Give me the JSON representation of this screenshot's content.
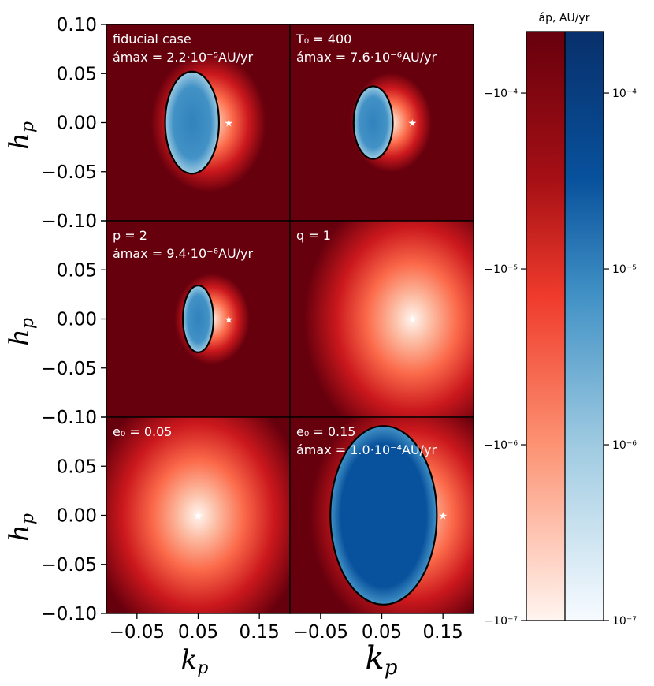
{
  "chart_data": {
    "type": "heatmap",
    "layout": "3 rows x 2 columns of panels with shared axes",
    "x": {
      "label_main": "k",
      "label_sub": "p",
      "range": [
        -0.1,
        0.2
      ],
      "ticks": [
        "−0.05",
        "0.05",
        "0.15"
      ]
    },
    "y": {
      "label_main": "h",
      "label_sub": "p",
      "range": [
        -0.1,
        0.1
      ],
      "ticks": [
        "0.10",
        "0.05",
        "0.00",
        "−0.05",
        "−0.10"
      ]
    },
    "panels": [
      {
        "id": "fiducial",
        "line1": "fiducial case",
        "line2": "ámax = 2.2·10⁻⁵AU/yr",
        "amax": 2.2e-05,
        "star": [
          0.1,
          0.0
        ],
        "ellipse": {
          "cx": 0.04,
          "cy": 0.0,
          "rx": 0.044,
          "ry": 0.052
        }
      },
      {
        "id": "T0",
        "line1": "T₀ = 400",
        "line2": "ámax = 7.6·10⁻⁶AU/yr",
        "amax": 7.6e-06,
        "star": [
          0.1,
          0.0
        ],
        "ellipse": {
          "cx": 0.036,
          "cy": 0.0,
          "rx": 0.032,
          "ry": 0.037
        }
      },
      {
        "id": "p2",
        "line1": "p = 2",
        "line2": "ámax = 9.4·10⁻⁶AU/yr",
        "amax": 9.4e-06,
        "star": [
          0.1,
          0.0
        ],
        "ellipse": {
          "cx": 0.05,
          "cy": 0.0,
          "rx": 0.025,
          "ry": 0.034
        }
      },
      {
        "id": "q1",
        "line1": "q = 1",
        "line2": "",
        "amax": null,
        "star": [
          0.1,
          0.0
        ],
        "ellipse": null
      },
      {
        "id": "e005",
        "line1": "e₀ = 0.05",
        "line2": "",
        "amax": null,
        "star": [
          0.05,
          0.0
        ],
        "ellipse": null
      },
      {
        "id": "e015",
        "line1": "e₀ = 0.15",
        "line2": "ámax = 1.0·10⁻⁴AU/yr",
        "amax": 0.0001,
        "star": [
          0.15,
          0.0
        ],
        "ellipse": {
          "cx": 0.053,
          "cy": 0.0,
          "rx": 0.087,
          "ry": 0.091
        }
      }
    ],
    "colorbar": {
      "title": "áp, AU/yr",
      "negative_cmap": "Reds",
      "positive_cmap": "Blues",
      "negative_ticks": [
        "−10⁻⁴",
        "−10⁻⁵",
        "−10⁻⁶",
        "−10⁻⁷"
      ],
      "positive_ticks": [
        "10⁻⁴",
        "10⁻⁵",
        "10⁻⁶",
        "10⁻⁷"
      ],
      "range_log10": [
        -7,
        -3.65
      ]
    }
  }
}
